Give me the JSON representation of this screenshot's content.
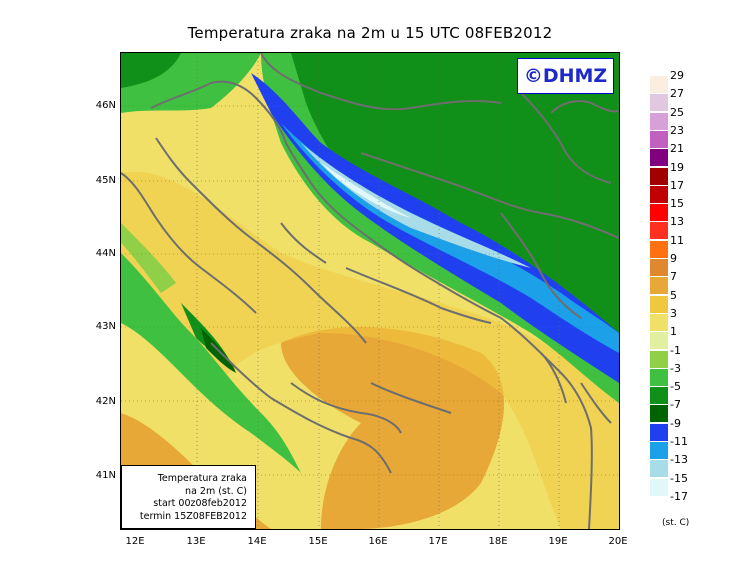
{
  "title": "Temperatura zraka na 2m u 15 UTC 08FEB2012",
  "logo": "©DHMZ",
  "map": {
    "lat_labels": [
      "46N",
      "45N",
      "44N",
      "43N",
      "42N",
      "41N"
    ],
    "lon_labels": [
      "12E",
      "13E",
      "14E",
      "15E",
      "16E",
      "17E",
      "18E",
      "19E",
      "20E"
    ]
  },
  "infobox": {
    "line1": "Temperatura zraka",
    "line2": "na 2m (st. C)",
    "line3": "start 00z08feb2012",
    "line4": "termin 15Z08FEB2012"
  },
  "legend": {
    "unit": "(st. C)",
    "labels": [
      "29",
      "27",
      "25",
      "23",
      "21",
      "19",
      "17",
      "15",
      "13",
      "11",
      "9",
      "7",
      "5",
      "3",
      "1",
      "-1",
      "-3",
      "-5",
      "-7",
      "-9",
      "-11",
      "-13",
      "-15",
      "-17"
    ],
    "colors": [
      "#fbeee0",
      "#e0c8e0",
      "#d8a0d8",
      "#c060c0",
      "#800080",
      "#a00000",
      "#c00000",
      "#ff0000",
      "#ff3020",
      "#ff7010",
      "#e08830",
      "#e8a838",
      "#f0c840",
      "#f0e068",
      "#e0f0a0",
      "#90d048",
      "#40c040",
      "#109018",
      "#006400",
      "#2040f0",
      "#1ca0e8",
      "#a8dce8",
      "#e0f8f8"
    ]
  }
}
